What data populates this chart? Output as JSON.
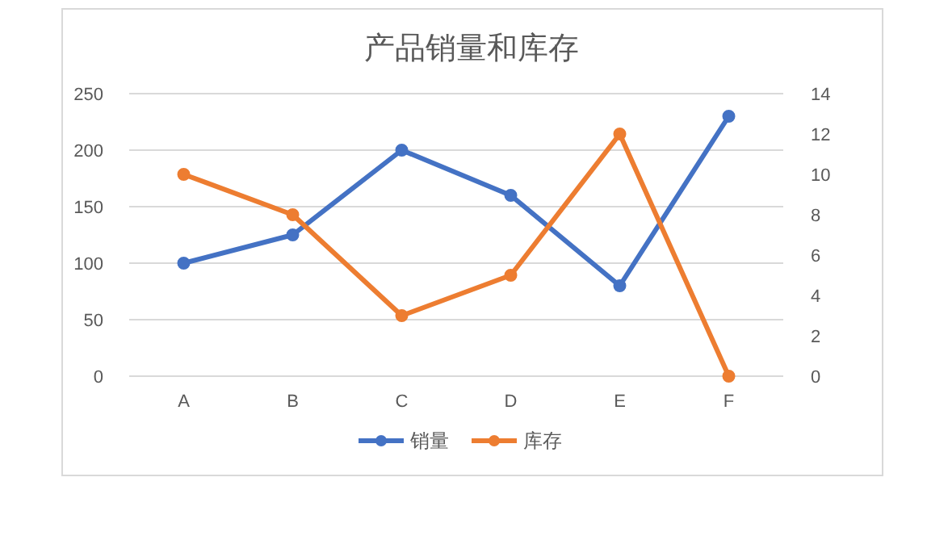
{
  "chart_data": {
    "type": "line",
    "title": "产品销量和库存",
    "categories": [
      "A",
      "B",
      "C",
      "D",
      "E",
      "F"
    ],
    "series": [
      {
        "name": "销量",
        "color": "#4472c4",
        "values": [
          100,
          125,
          200,
          160,
          80,
          230
        ]
      },
      {
        "name": "库存",
        "color": "#ed7d31",
        "values": [
          10,
          8,
          3,
          5,
          12,
          0
        ],
        "axis": "y2"
      }
    ],
    "ylim": [
      0,
      250
    ],
    "yticks": [
      0,
      50,
      100,
      150,
      200,
      250
    ],
    "y2lim": [
      0,
      14
    ],
    "y2ticks": [
      0,
      2,
      4,
      6,
      8,
      10,
      12,
      14
    ],
    "grid": "y",
    "legend": "bottom",
    "marker": "circle",
    "line_style": "solid"
  }
}
